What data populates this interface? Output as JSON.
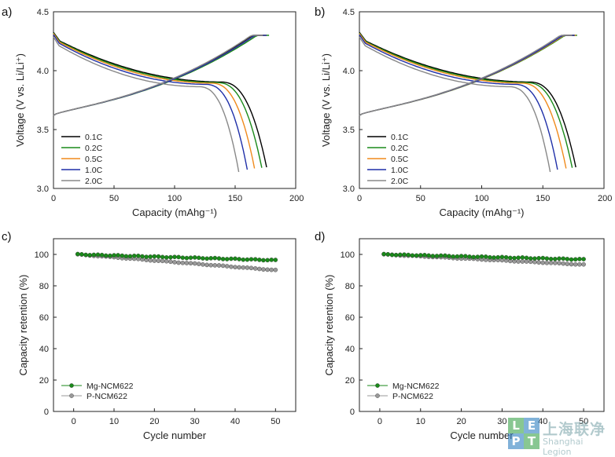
{
  "chart_data": [
    {
      "type": "line",
      "panel_label": "a)",
      "xlabel": "Capacity (mAhg⁻¹)",
      "ylabel": "Voltage (V vs. Li/Li⁺)",
      "xlim": [
        0,
        200
      ],
      "ylim": [
        3.0,
        4.5
      ],
      "xticks": [
        "0",
        "50",
        "100",
        "150",
        "200"
      ],
      "yticks": [
        "3.0",
        "3.5",
        "4.0",
        "4.5"
      ],
      "legend_position": "lower-left",
      "series": [
        {
          "name": "0.1C",
          "color": "#000000",
          "charge_end": 174,
          "discharge_end": 176
        },
        {
          "name": "0.2C",
          "color": "#1a8a1a",
          "charge_end": 178,
          "discharge_end": 172
        },
        {
          "name": "0.5C",
          "color": "#f08a1c",
          "charge_end": 176,
          "discharge_end": 166
        },
        {
          "name": "1.0C",
          "color": "#1f2fa8",
          "charge_end": 176,
          "discharge_end": 160
        },
        {
          "name": "2.0C",
          "color": "#888888",
          "charge_end": 173,
          "discharge_end": 153
        }
      ]
    },
    {
      "type": "line",
      "panel_label": "b)",
      "xlabel": "Capacity (mAhg⁻¹)",
      "ylabel": "Voltage (V vs. Li/Li⁺)",
      "xlim": [
        0,
        200
      ],
      "ylim": [
        3.0,
        4.5
      ],
      "xticks": [
        "0",
        "50",
        "100",
        "150",
        "200"
      ],
      "yticks": [
        "3.0",
        "3.5",
        "4.0",
        "4.5"
      ],
      "legend_position": "lower-left",
      "series": [
        {
          "name": "0.1C",
          "color": "#000000",
          "charge_end": 176,
          "discharge_end": 177
        },
        {
          "name": "0.2C",
          "color": "#1a8a1a",
          "charge_end": 178,
          "discharge_end": 174
        },
        {
          "name": "0.5C",
          "color": "#f08a1c",
          "charge_end": 177,
          "discharge_end": 169
        },
        {
          "name": "1.0C",
          "color": "#1f2fa8",
          "charge_end": 176,
          "discharge_end": 162
        },
        {
          "name": "2.0C",
          "color": "#888888",
          "charge_end": 174,
          "discharge_end": 156
        }
      ]
    },
    {
      "type": "scatter",
      "panel_label": "c)",
      "xlabel": "Cycle number",
      "ylabel": "Capacity retention (%)",
      "xlim": [
        -5,
        55
      ],
      "ylim": [
        0,
        110
      ],
      "xticks": [
        "0",
        "10",
        "20",
        "30",
        "40",
        "50"
      ],
      "yticks": [
        "0",
        "20",
        "40",
        "60",
        "80",
        "100"
      ],
      "legend_position": "lower-left",
      "series": [
        {
          "name": "Mg-NCM622",
          "color": "#1a8a1a",
          "start": 100,
          "end": 96.3
        },
        {
          "name": "P-NCM622",
          "color": "#999999",
          "start": 100,
          "end": 90.0
        }
      ]
    },
    {
      "type": "scatter",
      "panel_label": "d)",
      "xlabel": "Cycle number",
      "ylabel": "Capacity retention (%)",
      "xlim": [
        -5,
        55
      ],
      "ylim": [
        0,
        110
      ],
      "xticks": [
        "0",
        "10",
        "20",
        "30",
        "40",
        "50"
      ],
      "yticks": [
        "0",
        "20",
        "40",
        "60",
        "80",
        "100"
      ],
      "legend_position": "lower-left",
      "series": [
        {
          "name": "Mg-NCM622",
          "color": "#1a8a1a",
          "start": 100,
          "end": 96.8
        },
        {
          "name": "P-NCM622",
          "color": "#999999",
          "start": 100,
          "end": 93.5
        }
      ]
    }
  ],
  "watermark": {
    "letters": [
      "L",
      "E",
      "P",
      "T"
    ],
    "chinese": "上海联净",
    "english": "Shanghai Legion"
  }
}
